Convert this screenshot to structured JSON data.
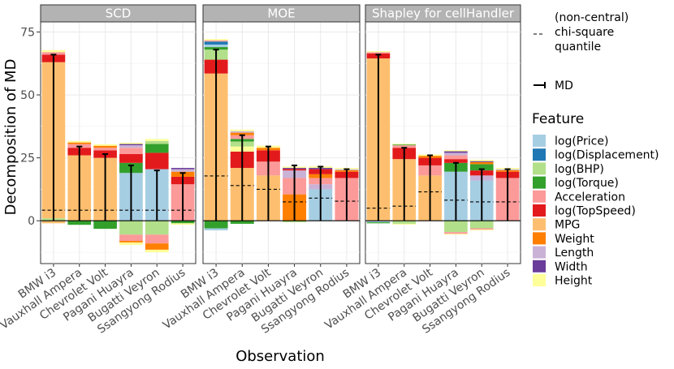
{
  "chart_data": {
    "type": "bar",
    "subtype": "stacked-decomposition-with-errorbars",
    "ylabel": "Decomposition of MD",
    "xlabel": "Observation",
    "ylim": [
      -17,
      79
    ],
    "yticks": [
      0,
      25,
      50,
      75
    ],
    "categories": [
      "BMW i3",
      "Vauxhall Ampera",
      "Chevrolet Volt",
      "Pagani Huayra",
      "Bugatti Veyron",
      "Ssangyong Rodius"
    ],
    "features": [
      "log(Price)",
      "log(Displacement)",
      "log(BHP)",
      "log(Torque)",
      "Acceleration",
      "log(TopSpeed)",
      "MPG",
      "Weight",
      "Length",
      "Width",
      "Height"
    ],
    "colors": {
      "log(Price)": "#a6cee3",
      "log(Displacement)": "#1f78b4",
      "log(BHP)": "#b2df8a",
      "log(Torque)": "#33a02c",
      "Acceleration": "#fb9a99",
      "log(TopSpeed)": "#e31a1c",
      "MPG": "#fdbf6f",
      "Weight": "#ff7f00",
      "Length": "#cab2d6",
      "Width": "#6a3d9a",
      "Height": "#ffff99"
    },
    "legend": {
      "chisq_label_lines": [
        "(non-central)",
        "chi-square",
        "quantile"
      ],
      "md_label": "MD",
      "feature_title": "Feature"
    },
    "panels": [
      {
        "title": "SCD",
        "md": [
          66,
          29.5,
          26.5,
          22,
          20,
          19
        ],
        "quantile": [
          4.2,
          4.2,
          4.2,
          4.2,
          4.2,
          4.2
        ],
        "bars": [
          {
            "pos": [
              [
                "log(BHP)",
                1.0
              ],
              [
                "MPG",
                62.0
              ],
              [
                "log(TopSpeed)",
                3.0
              ],
              [
                "Acceleration",
                1.0
              ],
              [
                "Height",
                0.8
              ]
            ],
            "neg": [
              [
                "MPG",
                -1.0
              ]
            ]
          },
          {
            "pos": [
              [
                "MPG",
                26.0
              ],
              [
                "log(TopSpeed)",
                3.0
              ],
              [
                "Acceleration",
                1.5
              ],
              [
                "Weight",
                0.6
              ],
              [
                "Height",
                0.6
              ]
            ],
            "neg": [
              [
                "log(Torque)",
                -1.6
              ]
            ]
          },
          {
            "pos": [
              [
                "MPG",
                25.0
              ],
              [
                "log(TopSpeed)",
                3.0
              ],
              [
                "Acceleration",
                1.0
              ],
              [
                "Weight",
                0.8
              ],
              [
                "Height",
                0.6
              ]
            ],
            "neg": [
              [
                "log(Torque)",
                -3.2
              ]
            ]
          },
          {
            "pos": [
              [
                "log(Price)",
                19.0
              ],
              [
                "log(Torque)",
                4.0
              ],
              [
                "log(TopSpeed)",
                3.5
              ],
              [
                "Acceleration",
                2.5
              ],
              [
                "Length",
                1.0
              ],
              [
                "Width",
                0.5
              ],
              [
                "Height",
                0.5
              ]
            ],
            "neg": [
              [
                "log(BHP)",
                -5.5
              ],
              [
                "Acceleration",
                -2.5
              ],
              [
                "Weight",
                -0.6
              ],
              [
                "Height",
                -1.0
              ]
            ]
          },
          {
            "pos": [
              [
                "log(Price)",
                20.5
              ],
              [
                "log(TopSpeed)",
                6.5
              ],
              [
                "log(Torque)",
                3.5
              ],
              [
                "log(BHP)",
                1.2
              ],
              [
                "Height",
                0.8
              ]
            ],
            "neg": [
              [
                "log(BHP)",
                -5.5
              ],
              [
                "Acceleration",
                -3.5
              ],
              [
                "Weight",
                -2.5
              ],
              [
                "Height",
                -1.0
              ]
            ]
          },
          {
            "pos": [
              [
                "Acceleration",
                14.5
              ],
              [
                "log(TopSpeed)",
                3.0
              ],
              [
                "Weight",
                2.0
              ],
              [
                "Length",
                1.0
              ],
              [
                "Width",
                0.5
              ]
            ],
            "neg": [
              [
                "log(Torque)",
                -1.0
              ],
              [
                "Height",
                -0.6
              ]
            ]
          }
        ]
      },
      {
        "title": "MOE",
        "md": [
          68,
          34,
          29.5,
          22,
          21.5,
          20.5
        ],
        "quantile": [
          17.8,
          14,
          12.5,
          7.5,
          9,
          7.8
        ],
        "bars": [
          {
            "pos": [
              [
                "MPG",
                58.5
              ],
              [
                "log(TopSpeed)",
                5.5
              ],
              [
                "log(BHP)",
                4.0
              ],
              [
                "log(Torque)",
                1.0
              ],
              [
                "log(Price)",
                1.0
              ],
              [
                "log(Displacement)",
                1.2
              ],
              [
                "Acceleration",
                0.5
              ],
              [
                "Height",
                0.5
              ]
            ],
            "neg": [
              [
                "log(Torque)",
                -3.0
              ],
              [
                "log(Price)",
                -0.8
              ]
            ]
          },
          {
            "pos": [
              [
                "MPG",
                21.0
              ],
              [
                "log(TopSpeed)",
                6.5
              ],
              [
                "Height",
                2.0
              ],
              [
                "log(BHP)",
                2.0
              ],
              [
                "log(Torque)",
                1.0
              ],
              [
                "Acceleration",
                1.5
              ],
              [
                "Weight",
                1.0
              ],
              [
                "Length",
                0.6
              ],
              [
                "Height",
                0.6
              ]
            ],
            "neg": [
              [
                "log(Torque)",
                -1.2
              ]
            ]
          },
          {
            "pos": [
              [
                "MPG",
                18.0
              ],
              [
                "Acceleration",
                5.5
              ],
              [
                "log(TopSpeed)",
                4.5
              ],
              [
                "Weight",
                1.0
              ],
              [
                "Height",
                0.8
              ]
            ],
            "neg": []
          },
          {
            "pos": [
              [
                "Weight",
                10.5
              ],
              [
                "Acceleration",
                6.5
              ],
              [
                "Length",
                3.0
              ],
              [
                "log(TopSpeed)",
                0.6
              ],
              [
                "Width",
                0.4
              ],
              [
                "Height",
                0.5
              ]
            ],
            "neg": [
              [
                "log(BHP)",
                -0.6
              ]
            ]
          },
          {
            "pos": [
              [
                "log(Price)",
                12.5
              ],
              [
                "Length",
                2.0
              ],
              [
                "Acceleration",
                2.5
              ],
              [
                "Weight",
                1.5
              ],
              [
                "log(TopSpeed)",
                2.0
              ],
              [
                "Width",
                0.5
              ],
              [
                "Height",
                0.6
              ]
            ],
            "neg": []
          },
          {
            "pos": [
              [
                "Acceleration",
                17.0
              ],
              [
                "log(TopSpeed)",
                2.5
              ],
              [
                "Weight",
                0.6
              ],
              [
                "Length",
                0.4
              ],
              [
                "Height",
                0.5
              ]
            ],
            "neg": []
          }
        ]
      },
      {
        "title": "Shapley for cellHandler",
        "md": [
          66,
          29,
          26,
          23,
          20.5,
          20.5
        ],
        "quantile": [
          5,
          5.8,
          11.5,
          8.2,
          7.5,
          7.5
        ],
        "bars": [
          {
            "pos": [
              [
                "MPG",
                64.5
              ],
              [
                "log(TopSpeed)",
                2.0
              ],
              [
                "Acceleration",
                0.5
              ],
              [
                "Height",
                0.4
              ]
            ],
            "neg": [
              [
                "log(Price)",
                -0.6
              ],
              [
                "log(Torque)",
                -0.4
              ]
            ]
          },
          {
            "pos": [
              [
                "MPG",
                24.5
              ],
              [
                "log(TopSpeed)",
                4.5
              ],
              [
                "Acceleration",
                1.0
              ],
              [
                "log(Torque)",
                0.3
              ],
              [
                "Height",
                0.3
              ]
            ],
            "neg": [
              [
                "log(BHP)",
                -1.2
              ],
              [
                "Height",
                -0.3
              ]
            ]
          },
          {
            "pos": [
              [
                "MPG",
                18.0
              ],
              [
                "Acceleration",
                4.0
              ],
              [
                "log(TopSpeed)",
                3.0
              ],
              [
                "Weight",
                0.8
              ],
              [
                "Height",
                0.5
              ]
            ],
            "neg": []
          },
          {
            "pos": [
              [
                "log(Price)",
                19.5
              ],
              [
                "log(Torque)",
                3.5
              ],
              [
                "log(TopSpeed)",
                1.5
              ],
              [
                "Acceleration",
                1.5
              ],
              [
                "Length",
                1.0
              ],
              [
                "Width",
                0.6
              ],
              [
                "Height",
                0.4
              ]
            ],
            "neg": [
              [
                "log(BHP)",
                -4.5
              ],
              [
                "Acceleration",
                -0.7
              ],
              [
                "Height",
                -0.3
              ]
            ]
          },
          {
            "pos": [
              [
                "log(Price)",
                16.0
              ],
              [
                "Length",
                2.0
              ],
              [
                "log(TopSpeed)",
                2.0
              ],
              [
                "log(Torque)",
                2.5
              ],
              [
                "Weight",
                0.8
              ],
              [
                "Width",
                0.4
              ],
              [
                "Height",
                0.5
              ]
            ],
            "neg": [
              [
                "log(BHP)",
                -3.0
              ],
              [
                "Acceleration",
                -0.5
              ],
              [
                "Height",
                -0.3
              ]
            ]
          },
          {
            "pos": [
              [
                "Acceleration",
                17.0
              ],
              [
                "log(TopSpeed)",
                2.5
              ],
              [
                "Weight",
                0.6
              ],
              [
                "Length",
                0.4
              ],
              [
                "Height",
                0.5
              ]
            ],
            "neg": []
          }
        ]
      }
    ]
  }
}
